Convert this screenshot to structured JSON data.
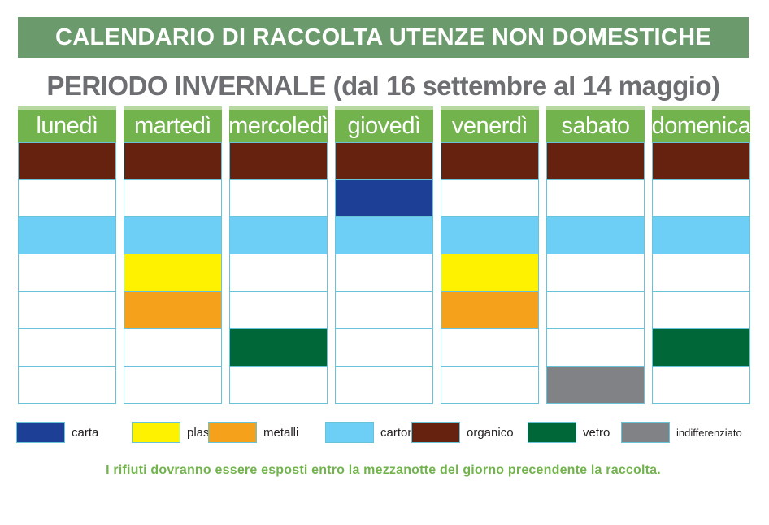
{
  "title": "CALENDARIO DI RACCOLTA UTENZE NON DOMESTICHE",
  "subtitle": "PERIODO INVERNALE (dal 16 settembre al 14 maggio)",
  "colors": {
    "carta": "#1d3f95",
    "plastica": "#fff200",
    "metalli": "#f6a11b",
    "cartone": "#6dcff6",
    "organico": "#66220f",
    "vetro": "#006838",
    "indifferenziato": "#808285",
    "empty": "#ffffff"
  },
  "days": [
    {
      "label": "lunedì",
      "cells": [
        "organico",
        "",
        "cartone",
        "",
        "",
        "",
        ""
      ]
    },
    {
      "label": "martedì",
      "cells": [
        "organico",
        "",
        "cartone",
        "plastica",
        "metalli",
        "",
        ""
      ]
    },
    {
      "label": "mercoledì",
      "cells": [
        "organico",
        "",
        "cartone",
        "",
        "",
        "vetro",
        ""
      ]
    },
    {
      "label": "giovedì",
      "cells": [
        "organico",
        "carta",
        "cartone",
        "",
        "",
        "",
        ""
      ]
    },
    {
      "label": "venerdì",
      "cells": [
        "organico",
        "",
        "cartone",
        "plastica",
        "metalli",
        "",
        ""
      ]
    },
    {
      "label": "sabato",
      "cells": [
        "organico",
        "",
        "cartone",
        "",
        "",
        "",
        "indifferenziato"
      ]
    },
    {
      "label": "domenica",
      "cells": [
        "organico",
        "",
        "cartone",
        "",
        "",
        "vetro",
        ""
      ]
    }
  ],
  "legend": [
    {
      "key": "carta",
      "label": "carta"
    },
    {
      "key": "plastica",
      "label": "plastica"
    },
    {
      "key": "metalli",
      "label": "metalli"
    },
    {
      "key": "cartone",
      "label": "cartone"
    },
    {
      "key": "organico",
      "label": "organico"
    },
    {
      "key": "vetro",
      "label": "vetro"
    },
    {
      "key": "indifferenziato",
      "label": "indifferenziato"
    }
  ],
  "note": "I rifiuti dovranno essere esposti entro la mezzanotte del giorno precendente la raccolta."
}
